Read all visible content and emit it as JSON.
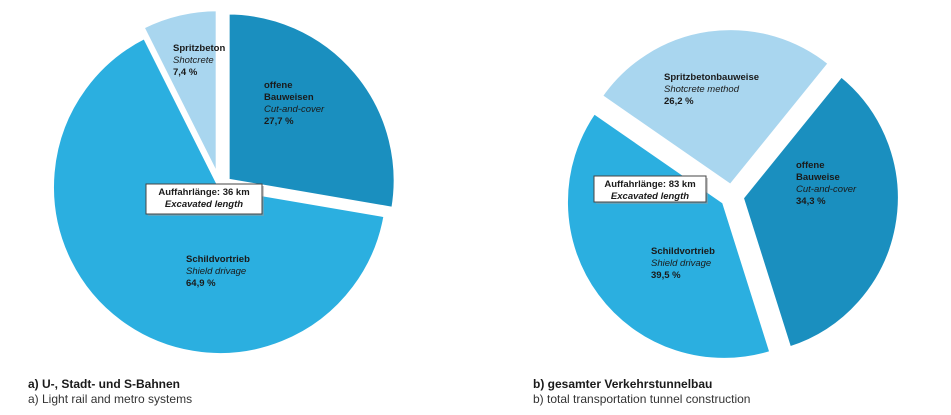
{
  "chart_data": [
    {
      "type": "pie",
      "center_label": {
        "line1": "Auffahrlänge: 36 km",
        "line2": "Excavated length"
      },
      "caption": {
        "title": "a) U-, Stadt- und S-Bahnen",
        "subtitle": "a) Light rail and metro systems"
      },
      "slices": [
        {
          "de": "offene Bauweisen",
          "en": "Cut-and-cover",
          "value": 27.7,
          "value_label": "27,7 %",
          "color": "#1a8fbf",
          "exploded": true
        },
        {
          "de": "Schildvortrieb",
          "en": "Shield drivage",
          "value": 64.9,
          "value_label": "64,9 %",
          "color": "#2bafe0",
          "exploded": false
        },
        {
          "de": "Spritzbeton",
          "en": "Shotcrete",
          "value": 7.4,
          "value_label": "7,4 %",
          "color": "#a9d6ef",
          "exploded": true
        }
      ]
    },
    {
      "type": "pie",
      "center_label": {
        "line1": "Auffahrlänge: 83 km",
        "line2": "Excavated length"
      },
      "caption": {
        "title": "b) gesamter Verkehrstunnelbau",
        "subtitle": "b) total transportation tunnel construction"
      },
      "slices": [
        {
          "de": "offene Bauweise",
          "en": "Cut-and-cover",
          "value": 34.3,
          "value_label": "34,3 %",
          "color": "#1a8fbf",
          "exploded": true
        },
        {
          "de": "Schildvortrieb",
          "en": "Shield drivage",
          "value": 39.5,
          "value_label": "39,5 %",
          "color": "#2bafe0",
          "exploded": true
        },
        {
          "de": "Spritzbetonbauweise",
          "en": "Shotcrete method",
          "value": 26.2,
          "value_label": "26,2 %",
          "color": "#a9d6ef",
          "exploded": true
        }
      ]
    }
  ]
}
